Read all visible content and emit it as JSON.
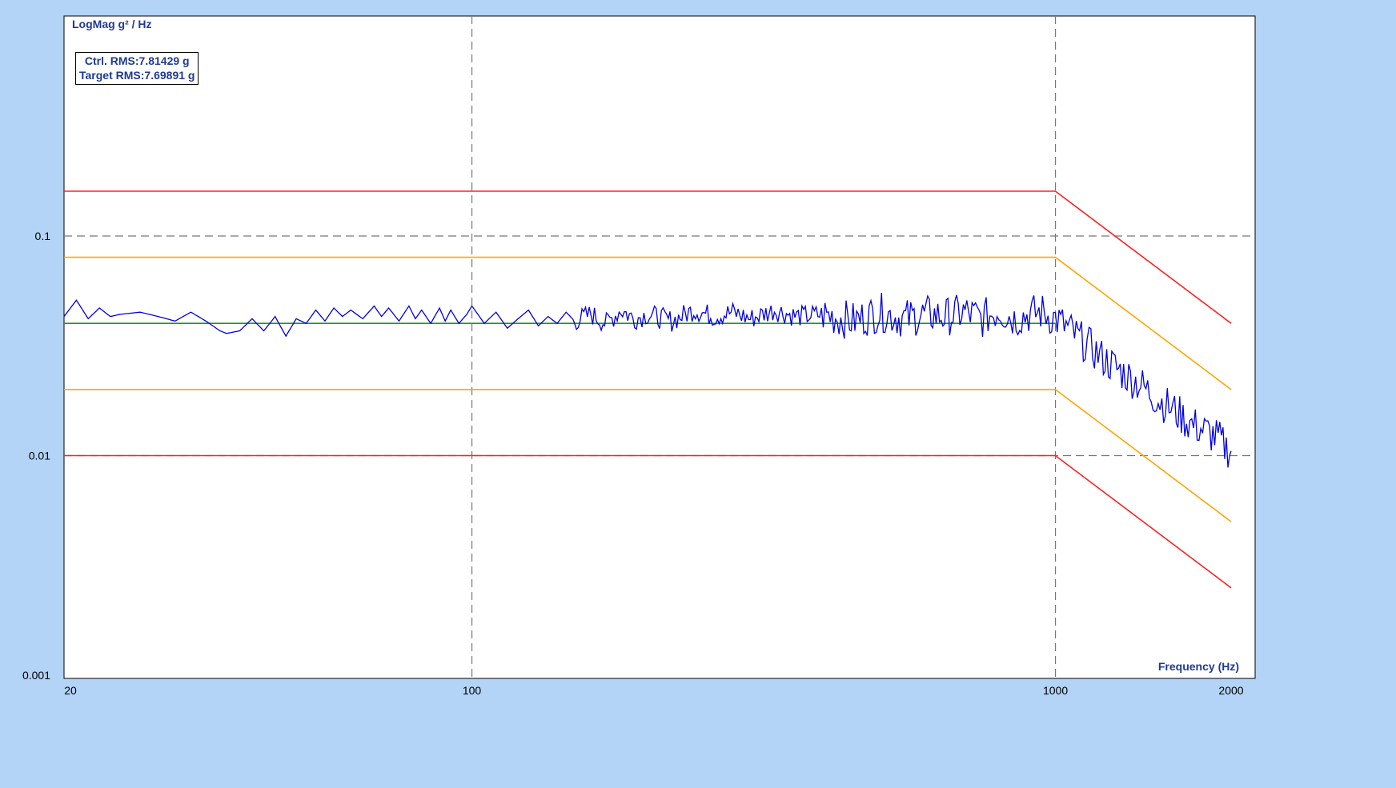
{
  "chart_data": {
    "type": "line",
    "x_scale": "log",
    "y_scale": "log",
    "xlim": [
      20,
      2000
    ],
    "ylim": [
      0.001,
      1
    ],
    "ylabel": "LogMag g² / Hz",
    "xlabel": "Frequency (Hz)",
    "x_ticks": [
      {
        "value": 20,
        "label": "20"
      },
      {
        "value": 100,
        "label": "100"
      },
      {
        "value": 1000,
        "label": "1000"
      },
      {
        "value": 2000,
        "label": "2000"
      }
    ],
    "y_ticks": [
      {
        "value": 0.1,
        "label": "0.1"
      },
      {
        "value": 0.01,
        "label": "0.01"
      },
      {
        "value": 0.001,
        "label": "0.001"
      }
    ],
    "grid_x": [
      100,
      1000
    ],
    "grid_y": [
      0.1,
      0.01
    ],
    "annotations": {
      "ctrl_rms": "Ctrl. RMS:7.81429 g",
      "target_rms": "Target RMS:7.69891 g"
    },
    "series": [
      {
        "key": "abort_high",
        "color": "#ff2020",
        "x": [
          20,
          1000,
          2000
        ],
        "y": [
          0.16,
          0.16,
          0.04
        ]
      },
      {
        "key": "alarm_high",
        "color": "#ffa500",
        "x": [
          20,
          1000,
          2000
        ],
        "y": [
          0.08,
          0.08,
          0.02
        ]
      },
      {
        "key": "reference",
        "color": "#1a9a1a",
        "x": [
          20,
          1000
        ],
        "y": [
          0.04,
          0.04
        ]
      },
      {
        "key": "alarm_low",
        "color": "#ffa500",
        "x": [
          20,
          1000,
          2000
        ],
        "y": [
          0.02,
          0.02,
          0.005
        ]
      },
      {
        "key": "abort_low",
        "color": "#ff2020",
        "x": [
          20,
          1000,
          2000
        ],
        "y": [
          0.01,
          0.01,
          0.0025
        ]
      },
      {
        "key": "control",
        "color": "#0000e0",
        "x": [
          20,
          21,
          22,
          23,
          24,
          25,
          27,
          29,
          31,
          33,
          35,
          37,
          38,
          40,
          42,
          44,
          46,
          48,
          50,
          52,
          54,
          56,
          58,
          60,
          62,
          65,
          68,
          70,
          72,
          75,
          78,
          80,
          82,
          85,
          88,
          90,
          92,
          95,
          98,
          100,
          105,
          110,
          115,
          120,
          125,
          130,
          135,
          140,
          145,
          150,
          160,
          170,
          180,
          190,
          200,
          220,
          240,
          260,
          280,
          300,
          330,
          360,
          400,
          450,
          500,
          550,
          600,
          650,
          700,
          750,
          800,
          850,
          900,
          950,
          1000,
          1050,
          1100,
          1150,
          1200,
          1300,
          1400,
          1500,
          1600,
          1700,
          1800,
          1900,
          1950,
          2000
        ],
        "y": [
          0.043,
          0.051,
          0.042,
          0.047,
          0.043,
          0.044,
          0.045,
          0.043,
          0.041,
          0.045,
          0.041,
          0.037,
          0.036,
          0.037,
          0.042,
          0.037,
          0.043,
          0.035,
          0.042,
          0.04,
          0.046,
          0.041,
          0.047,
          0.043,
          0.046,
          0.042,
          0.048,
          0.043,
          0.047,
          0.041,
          0.048,
          0.042,
          0.046,
          0.04,
          0.047,
          0.041,
          0.046,
          0.04,
          0.044,
          0.048,
          0.04,
          0.045,
          0.038,
          0.042,
          0.046,
          0.039,
          0.043,
          0.04,
          0.045,
          0.041,
          0.044,
          0.04,
          0.046,
          0.042,
          0.044,
          0.041,
          0.046,
          0.043,
          0.045,
          0.042,
          0.046,
          0.043,
          0.044,
          0.041,
          0.045,
          0.042,
          0.044,
          0.043,
          0.045,
          0.042,
          0.046,
          0.042,
          0.044,
          0.045,
          0.042,
          0.038,
          0.034,
          0.031,
          0.028,
          0.024,
          0.021,
          0.018,
          0.016,
          0.014,
          0.013,
          0.012,
          0.011,
          0.0105
        ]
      }
    ]
  }
}
